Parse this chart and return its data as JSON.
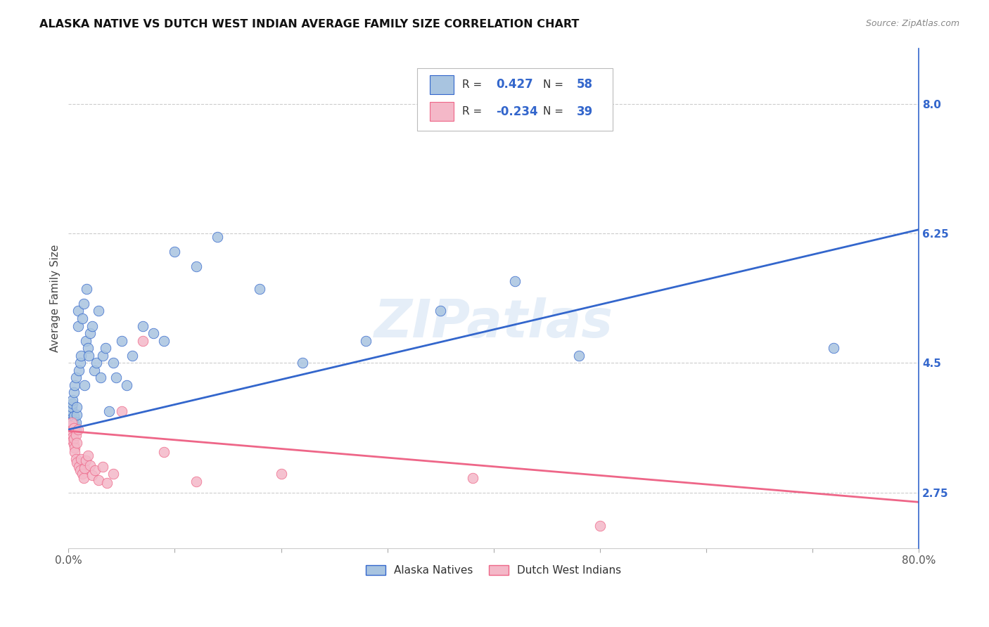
{
  "title": "ALASKA NATIVE VS DUTCH WEST INDIAN AVERAGE FAMILY SIZE CORRELATION CHART",
  "source": "Source: ZipAtlas.com",
  "ylabel": "Average Family Size",
  "right_yticks": [
    2.75,
    4.5,
    6.25,
    8.0
  ],
  "r_blue": 0.427,
  "n_blue": 58,
  "r_pink": -0.234,
  "n_pink": 39,
  "blue_color": "#a8c4e0",
  "pink_color": "#f4b8c8",
  "blue_line_color": "#3366cc",
  "pink_line_color": "#ee6688",
  "legend_label_blue": "Alaska Natives",
  "legend_label_pink": "Dutch West Indians",
  "watermark": "ZIPatlas",
  "xmin": 0.0,
  "xmax": 0.8,
  "ymin": 2.0,
  "ymax": 8.75,
  "xticks": [
    0.0,
    0.1,
    0.2,
    0.3,
    0.4,
    0.5,
    0.6,
    0.7,
    0.8
  ],
  "xtick_labels": [
    "0.0%",
    "",
    "",
    "",
    "",
    "",
    "",
    "",
    "80.0%"
  ],
  "blue_scatter_x": [
    0.001,
    0.002,
    0.002,
    0.003,
    0.003,
    0.003,
    0.004,
    0.004,
    0.004,
    0.005,
    0.005,
    0.005,
    0.006,
    0.006,
    0.007,
    0.007,
    0.007,
    0.008,
    0.008,
    0.009,
    0.009,
    0.01,
    0.011,
    0.012,
    0.013,
    0.014,
    0.015,
    0.016,
    0.017,
    0.018,
    0.019,
    0.02,
    0.022,
    0.024,
    0.026,
    0.028,
    0.03,
    0.032,
    0.035,
    0.038,
    0.042,
    0.045,
    0.05,
    0.055,
    0.06,
    0.07,
    0.08,
    0.09,
    0.1,
    0.12,
    0.14,
    0.18,
    0.22,
    0.28,
    0.35,
    0.42,
    0.48,
    0.72
  ],
  "blue_scatter_y": [
    3.7,
    3.65,
    3.8,
    3.75,
    3.85,
    3.9,
    3.72,
    3.95,
    4.0,
    3.68,
    3.78,
    4.1,
    3.62,
    4.2,
    3.6,
    3.7,
    4.3,
    3.8,
    3.9,
    5.0,
    5.2,
    4.4,
    4.5,
    4.6,
    5.1,
    5.3,
    4.2,
    4.8,
    5.5,
    4.7,
    4.6,
    4.9,
    5.0,
    4.4,
    4.5,
    5.2,
    4.3,
    4.6,
    4.7,
    3.85,
    4.5,
    4.3,
    4.8,
    4.2,
    4.6,
    5.0,
    4.9,
    4.8,
    6.0,
    5.8,
    6.2,
    5.5,
    4.5,
    4.8,
    5.2,
    5.6,
    4.6,
    4.7
  ],
  "pink_scatter_x": [
    0.001,
    0.002,
    0.002,
    0.003,
    0.003,
    0.004,
    0.004,
    0.005,
    0.005,
    0.005,
    0.006,
    0.006,
    0.007,
    0.007,
    0.008,
    0.008,
    0.009,
    0.01,
    0.011,
    0.012,
    0.013,
    0.014,
    0.015,
    0.016,
    0.018,
    0.02,
    0.022,
    0.025,
    0.028,
    0.032,
    0.036,
    0.042,
    0.05,
    0.07,
    0.09,
    0.12,
    0.2,
    0.38,
    0.5
  ],
  "pink_scatter_y": [
    3.6,
    3.55,
    3.65,
    3.58,
    3.7,
    3.5,
    3.45,
    3.62,
    3.4,
    3.48,
    3.35,
    3.3,
    3.52,
    3.2,
    3.42,
    3.15,
    3.6,
    3.1,
    3.05,
    3.2,
    3.0,
    2.95,
    3.08,
    3.18,
    3.25,
    3.12,
    2.98,
    3.05,
    2.92,
    3.1,
    2.88,
    3.0,
    3.85,
    4.8,
    3.3,
    2.9,
    3.0,
    2.95,
    2.3
  ],
  "blue_trendline_x": [
    0.0,
    0.8
  ],
  "blue_trendline_y": [
    3.6,
    6.3
  ],
  "pink_trendline_x": [
    0.0,
    0.8
  ],
  "pink_trendline_y": [
    3.58,
    2.62
  ]
}
